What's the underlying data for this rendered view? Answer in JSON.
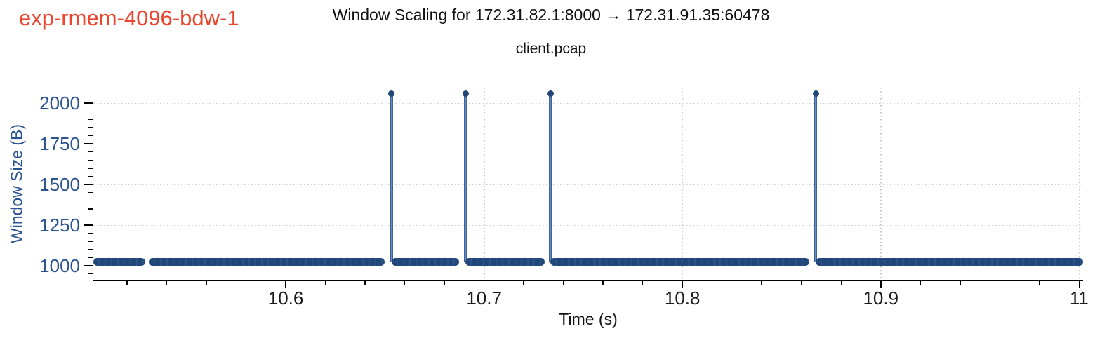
{
  "experiment_label": "exp-rmem-4096-bdw-1",
  "chart_data": {
    "type": "line",
    "style": "stem-and-baseline time series (scatter markers with vertical spikes)",
    "title": "Window Scaling for 172.31.82.1:8000 → 172.31.91.35:60478",
    "subtitle": "client.pcap",
    "xlabel": "Time (s)",
    "ylabel": "Window Size (B)",
    "xlim": [
      10.503,
      11.002
    ],
    "ylim": [
      910,
      2095
    ],
    "x_major_ticks": [
      10.6,
      10.7,
      10.8,
      10.9,
      11
    ],
    "x_tick_labels": [
      "10.6",
      "10.7",
      "10.8",
      "10.9",
      "11"
    ],
    "x_minor_step": 0.02,
    "y_major_ticks": [
      1000,
      1250,
      1500,
      1750,
      2000
    ],
    "y_tick_labels": [
      "1000",
      "1250",
      "1500",
      "1750",
      "2000"
    ],
    "y_minor_step": 50,
    "grid": "dotted gridlines at major ticks, both axes",
    "legend": "none",
    "baseline_value": 1024,
    "spike_value": 2060,
    "baseline_segments": [
      [
        10.503,
        10.5292
      ],
      [
        10.5308,
        10.65
      ],
      [
        10.6534,
        10.6875
      ],
      [
        10.6906,
        10.7305
      ],
      [
        10.7334,
        10.864
      ],
      [
        10.8672,
        11.002
      ]
    ],
    "spike_times": [
      10.6534,
      10.6906,
      10.7334,
      10.8672
    ],
    "colors": {
      "marker": "#214678",
      "stem_edge": "#3a639f",
      "stem_center": "#9fb5d4",
      "y_text": "#2a5291",
      "x_text": "#1a1a1a",
      "grid": "#c8c8c8",
      "axis": "#000000",
      "experiment_label": "#e8462f"
    }
  }
}
